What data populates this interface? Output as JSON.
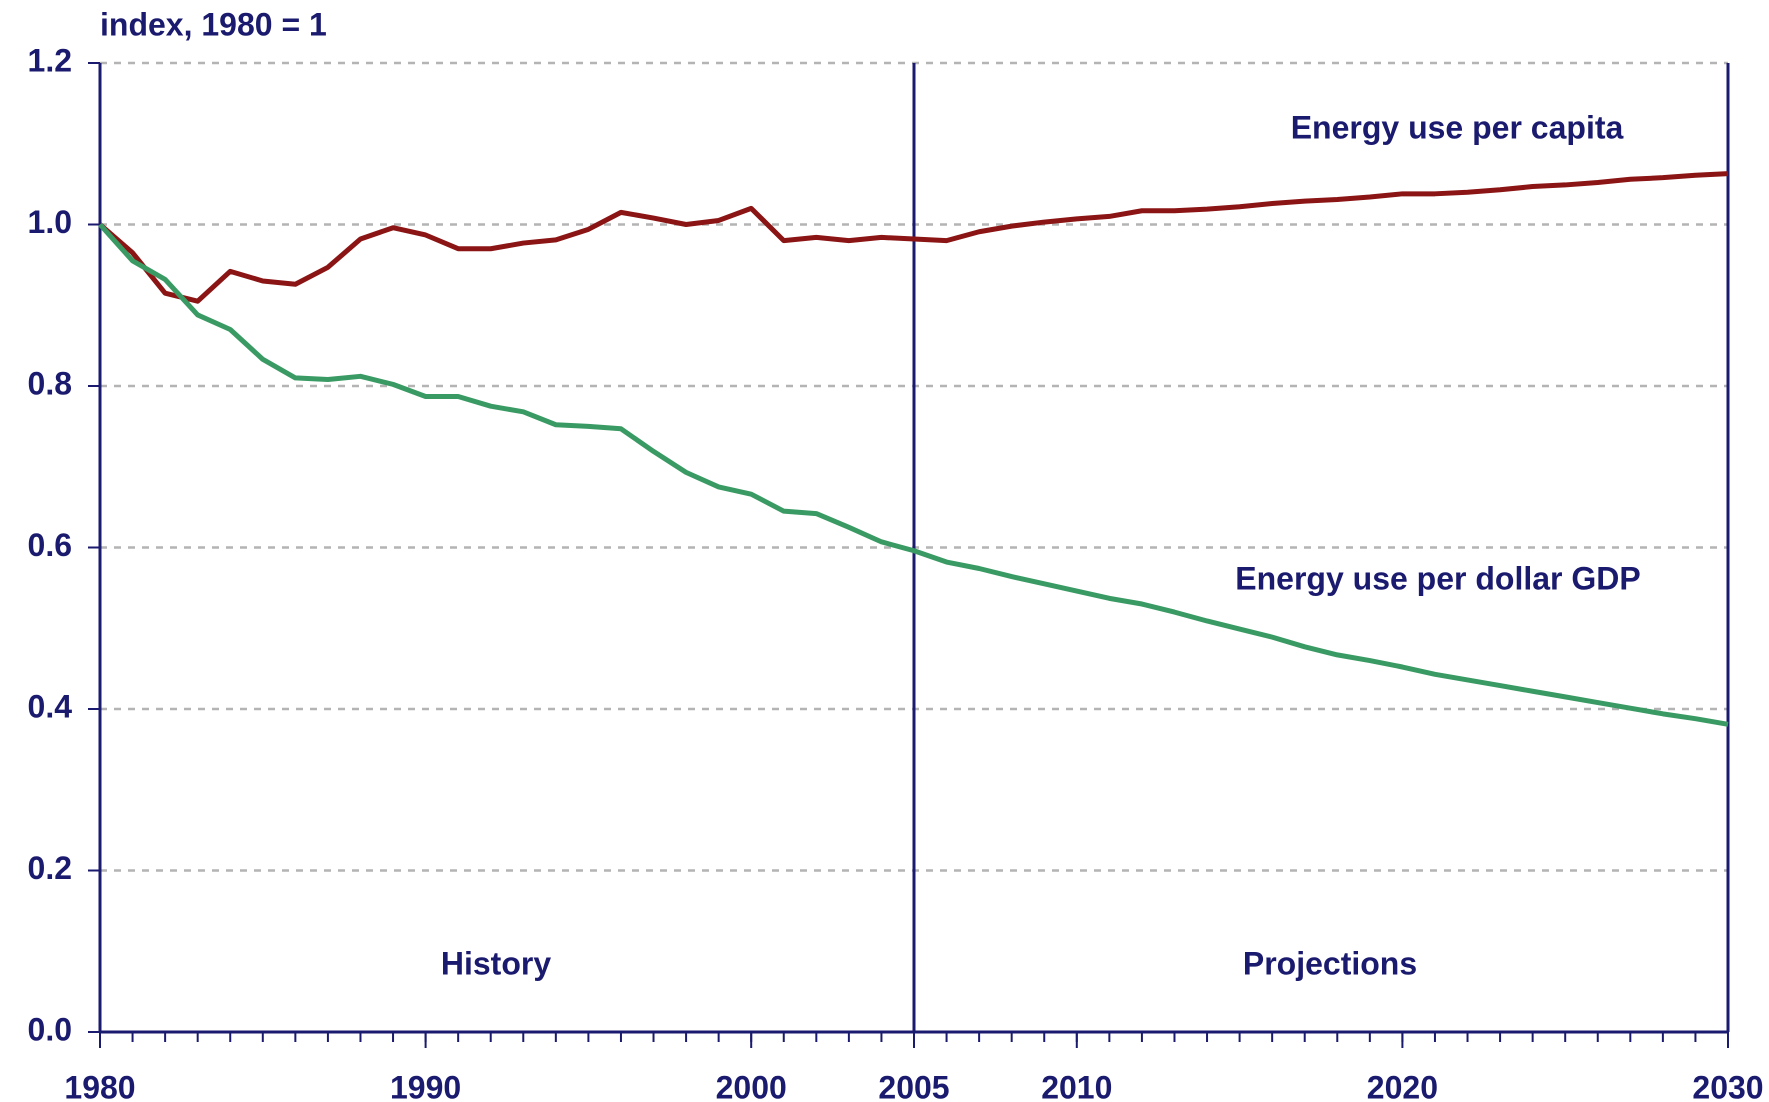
{
  "chart_data": {
    "type": "line",
    "y_axis_label": "index, 1980 = 1",
    "x": [
      1980,
      1981,
      1982,
      1983,
      1984,
      1985,
      1986,
      1987,
      1988,
      1989,
      1990,
      1991,
      1992,
      1993,
      1994,
      1995,
      1996,
      1997,
      1998,
      1999,
      2000,
      2001,
      2002,
      2003,
      2004,
      2005,
      2006,
      2007,
      2008,
      2009,
      2010,
      2011,
      2012,
      2013,
      2014,
      2015,
      2016,
      2017,
      2018,
      2019,
      2020,
      2021,
      2022,
      2023,
      2024,
      2025,
      2026,
      2027,
      2028,
      2029,
      2030
    ],
    "series": [
      {
        "name": "Energy use per capita",
        "color": "#8b1414",
        "values": [
          1.0,
          0.965,
          0.915,
          0.905,
          0.942,
          0.93,
          0.926,
          0.947,
          0.982,
          0.996,
          0.987,
          0.97,
          0.97,
          0.977,
          0.981,
          0.994,
          1.015,
          1.008,
          1.0,
          1.005,
          1.02,
          0.98,
          0.984,
          0.98,
          0.984,
          0.982,
          0.98,
          0.991,
          0.998,
          1.003,
          1.007,
          1.01,
          1.017,
          1.017,
          1.019,
          1.022,
          1.026,
          1.029,
          1.031,
          1.034,
          1.038,
          1.038,
          1.04,
          1.043,
          1.047,
          1.049,
          1.052,
          1.056,
          1.058,
          1.061,
          1.063
        ]
      },
      {
        "name": "Energy use per dollar GDP",
        "color": "#3a9a64",
        "values": [
          1.0,
          0.955,
          0.932,
          0.888,
          0.87,
          0.833,
          0.81,
          0.808,
          0.812,
          0.802,
          0.787,
          0.787,
          0.775,
          0.768,
          0.752,
          0.75,
          0.747,
          0.719,
          0.693,
          0.675,
          0.666,
          0.645,
          0.642,
          0.625,
          0.607,
          0.596,
          0.582,
          0.574,
          0.564,
          0.555,
          0.546,
          0.537,
          0.53,
          0.52,
          0.509,
          0.499,
          0.489,
          0.477,
          0.467,
          0.46,
          0.452,
          0.443,
          0.436,
          0.429,
          0.422,
          0.415,
          0.408,
          0.401,
          0.394,
          0.388,
          0.381
        ]
      }
    ],
    "annotations": [
      "History",
      "Projections"
    ],
    "divider_x": 2005,
    "xlim": [
      1980,
      2030
    ],
    "xticks": [
      1980,
      1990,
      2000,
      2005,
      2010,
      2020,
      2030
    ],
    "ylim": [
      0,
      1.2
    ],
    "yticks": [
      {
        "value": 0,
        "label": "0.0"
      },
      0.2,
      0.4,
      0.6,
      0.8,
      {
        "value": 1,
        "label": "1.0"
      },
      1.2
    ],
    "grid": true
  }
}
